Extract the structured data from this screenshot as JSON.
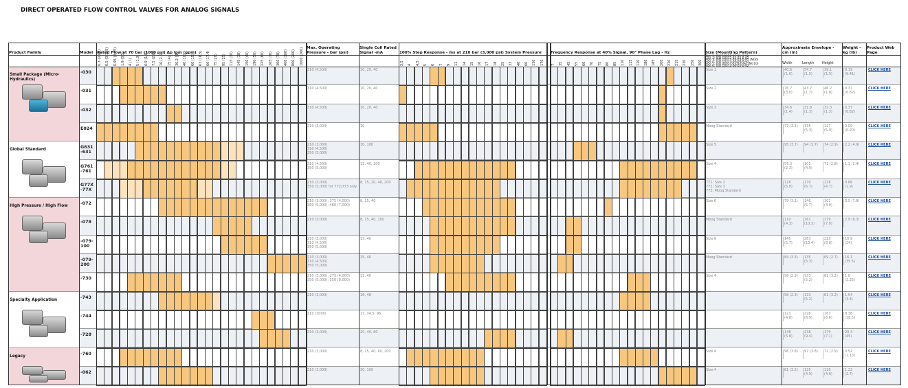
{
  "title": "DIRECT OPERATED FLOW CONTROL VALVES FOR ANALOG SIGNALS",
  "headers": {
    "family": "Product Family",
    "model": "Model",
    "flow": "Rated Flow at 70 bar (1000 psi) Δp lpm (gpm)",
    "pressure": "Max. Operating Pressure - bar (psi)",
    "signal": "Single Coil Rated Signal -mA",
    "step": "100% Step Response - ms at 210 bar (3,000 psi) System Pressure",
    "freq": "Frequency Response at 40% Signal, 90° Phase Lag - Hz",
    "size": "Size (Mounting Pattern)",
    "envelope": "Approximate Envelope - cm (in)",
    "width": "Width",
    "length": "Length",
    "height": "Height",
    "weight": "Weight - kg (lb)",
    "web": "Product Web Page"
  },
  "flow_columns": [
    "0.3 (0.08)",
    "0.5 (0.125)",
    "0.95 (0.25)",
    "1.9 (0.5)",
    "4 (1)",
    "5 (1.3)",
    "6.9 (1.8)",
    "7.5 (2.0)",
    "10 (2.5)",
    "15 (4)",
    "30.2 (8)",
    "40 (10)",
    "60 (15)",
    "63 (16.5)",
    "66 (17.4)",
    "75 (20)",
    "95 (25)",
    "115 (30)",
    "145 (38)",
    "150 (40)",
    "190 (50)",
    "225 (60)",
    "265 (70)",
    "300 (78)",
    "400 (100)",
    "800 (200)",
    "1000 (260)"
  ],
  "step_columns": [
    "2.5",
    "4",
    "4.5",
    "5",
    "6",
    "7",
    "9",
    "11",
    "14",
    "15",
    "16",
    "17",
    "18",
    "25",
    "33",
    "40",
    "60",
    "110",
    "170"
  ],
  "freq_columns": [
    "7",
    "35",
    "45",
    "55",
    "60",
    "70",
    "75",
    "80",
    "85",
    "110",
    "115",
    "120",
    "180",
    "185",
    "200",
    "210",
    "215",
    "230",
    "250",
    "300"
  ],
  "size_list": [
    "Size 1: ISO 10372-01-01-0-92",
    "Size 2: ISO 10372-03-03-0-92",
    "Size 3: ISO 10372-03-03-0-92 (NG6)",
    "Size 4: ISO 10372-04-04-0-92",
    "Size 5: ISO 4401-05-05-0-94 (NG10)",
    "Size 6: ISO 10372-06-05-0-92"
  ],
  "families": [
    {
      "name": "Small Package (Micro-Hydraulics)",
      "rows": [
        {
          "model": [
            "-030"
          ],
          "pressure": [
            "310 (4,500)"
          ],
          "signal": "10, 20, 40",
          "size": [
            "Size 1"
          ],
          "width": "40.6 (1.6)",
          "length": "54.7 (1.5)",
          "height": "39.1 (1.5)",
          "weight": "0.19 (0.41)",
          "link": "CLICK HERE",
          "flow": [
            [
              2,
              5
            ]
          ],
          "step": [
            [
              4,
              5
            ]
          ],
          "freq": [
            [
              15,
              15
            ]
          ]
        },
        {
          "model": [
            "-031"
          ],
          "pressure": [
            "310 (4,500)"
          ],
          "signal": "10, 20, 40",
          "size": [
            "Size 2"
          ],
          "width": "76.7 (3.0)",
          "length": "43.7 (1.7)",
          "height": "46.2 (1.8)",
          "weight": "0.37 (0.82)",
          "link": "CLICK HERE",
          "flow": [
            [
              3,
              8
            ]
          ],
          "step": [
            [
              0,
              0
            ]
          ],
          "freq": [
            [
              14,
              14
            ]
          ]
        },
        {
          "model": [
            "-032"
          ],
          "pressure": [
            "310 (4,500)"
          ],
          "signal": "10, 20, 40",
          "size": [
            "Size 3"
          ],
          "width": "34.6 (1.4)",
          "length": "31.8 (1.3)",
          "height": "32.0 (1.3)",
          "weight": "0.37 (0.82)",
          "link": "CLICK HERE",
          "flow": [
            [
              9,
              10
            ]
          ],
          "step": [],
          "freq": [
            [
              14,
              14
            ]
          ]
        },
        {
          "model": [
            "E024"
          ],
          "pressure": [
            "210 (3,000)"
          ],
          "signal": "10",
          "size": [
            "Moog Standard"
          ],
          "width": "77 (3.1)",
          "length": "135 (5.3)",
          "height": "127 (5.0)",
          "weight": "0.09 (0.20)",
          "link": "CLICK HERE",
          "flow": [
            [
              0,
              7
            ]
          ],
          "step": [
            [
              0,
              4
            ]
          ],
          "freq": [
            [
              14,
              18
            ]
          ]
        }
      ]
    },
    {
      "name": "Global Standard",
      "rows": [
        {
          "model": [
            "G631",
            "-631"
          ],
          "pressure": [
            "210 (3,000)",
            "310 (4,500)",
            "350 (5,000)"
          ],
          "signal": "30, 100",
          "size": [
            "Size 5"
          ],
          "width": "95 (3.7)",
          "length": "94 (3.7)",
          "height": "74 (2.9)",
          "weight": "2.2 (4.9)",
          "link": "CLICK HERE",
          "flow": [
            [
              5,
              15
            ]
          ],
          "flow_partial": [
            [
              16,
              18
            ]
          ],
          "step": [],
          "freq": [
            [
              3,
              5
            ]
          ]
        },
        {
          "model": [
            "G761",
            "-761"
          ],
          "pressure": [
            "310 (4,500)",
            "350 (5,000)"
          ],
          "signal": "15, 40, 200",
          "size": [
            "Size 4"
          ],
          "width": "59.3 (2.3)",
          "length": "101 (4.0)",
          "height": "71 (2.8)",
          "weight": "1.1 (2.4)",
          "link": "CLICK HERE",
          "flow": [
            [
              4,
              15
            ]
          ],
          "flow_partial": [
            [
              1,
              3
            ],
            [
              16,
              17
            ]
          ],
          "step": [
            [
              2,
              14
            ]
          ],
          "freq": [
            [
              9,
              18
            ]
          ]
        },
        {
          "model": [
            "G77X",
            "-77X"
          ],
          "pressure": [
            "210 (3,000)",
            "350 (5,000) for 772/773 only"
          ],
          "signal": "8, 15, 20, 40, 200",
          "size": [
            "771: Size 2",
            "772: Size 3",
            "773: Moog Standard"
          ],
          "width": "128 (5.0)",
          "length": "170 (6.7)",
          "height": "118 (4.7)",
          "weight": "0.86 (1.9)",
          "link": "CLICK HERE",
          "flow": [
            [
              6,
              12
            ]
          ],
          "flow_partial": [
            [
              3,
              5
            ],
            [
              13,
              14
            ]
          ],
          "step": [
            [
              1,
              12
            ]
          ],
          "freq": [
            [
              9,
              16
            ]
          ]
        }
      ]
    },
    {
      "name": "High Pressure / High Flow",
      "rows": [
        {
          "model": [
            "-072"
          ],
          "pressure": [
            "210 (3,000); 275 (4,000)",
            "350 (5,000); 480 (7,000)"
          ],
          "signal": "8, 15, 40",
          "size": [
            "Size 6"
          ],
          "width": "79 (3.1)",
          "length": "146 (5.7)",
          "height": "102 (4.0)",
          "weight": "3.5 (7.8)",
          "link": "CLICK HERE",
          "flow": [
            [
              8,
              21
            ]
          ],
          "step": [
            [
              3,
              14
            ]
          ],
          "freq": [
            [
              7,
              7
            ]
          ]
        },
        {
          "model": [
            "-078"
          ],
          "pressure": [
            "210 (3,000)"
          ],
          "signal": "8, 15, 40, 100",
          "size": [
            "Moog Standard"
          ],
          "width": "110 (4.3)",
          "length": "261 (10.3)",
          "height": "179 (7.0)",
          "weight": "2.9 (6.3)",
          "link": "CLICK HERE",
          "flow": [
            [
              15,
              19
            ]
          ],
          "step": [
            [
              4,
              14
            ]
          ],
          "freq": [
            [
              2,
              3
            ]
          ]
        },
        {
          "model": [
            "-079-",
            "100"
          ],
          "pressure": [
            "210 (3,000)",
            "310 (4,500)",
            "350 (5,000)"
          ],
          "signal": "15, 40",
          "size": [
            "Size 6"
          ],
          "width": "145 (5.7)",
          "length": "263 (10.4)",
          "height": "223 (8.8)",
          "weight": "10.9 (24)",
          "link": "CLICK HERE",
          "flow": [
            [
              16,
              21
            ]
          ],
          "step": [
            [
              4,
              12
            ]
          ],
          "freq": [
            [
              2,
              3
            ]
          ]
        },
        {
          "model": [
            "-079-",
            "200"
          ],
          "pressure": [
            "210 (3,000)",
            "310 (4,500)",
            "350 (5,000)"
          ],
          "signal": "15, 40",
          "size": [
            "Moog Standard"
          ],
          "width": "84 (3.3)",
          "length": "135 (5.3)",
          "height": "69 (2.7)",
          "weight": "16.1 (35.5)",
          "link": "CLICK HERE",
          "flow": [
            [
              22,
              26
            ]
          ],
          "step": [
            [
              4,
              10
            ]
          ],
          "freq": [
            [
              1,
              2
            ]
          ]
        },
        {
          "model": [
            "-730"
          ],
          "pressure": [
            "210 (3,000); 275 (4,000)",
            "350 (5,000); 550 (8,000)"
          ],
          "signal": "15, 40",
          "size": [
            "Size 4"
          ],
          "width": "58 (2.3)",
          "length": "133 (5.2)",
          "height": "81 (3.2)",
          "weight": "1.0 (2.25)",
          "link": "CLICK HERE",
          "flow": [
            [
              4,
              10
            ]
          ],
          "step": [
            [
              6,
              14
            ]
          ],
          "freq": [
            [
              10,
              12
            ]
          ]
        }
      ]
    },
    {
      "name": "Specialty Application",
      "rows": [
        {
          "model": [
            "-743"
          ],
          "pressure": [
            "210 (3,000)"
          ],
          "signal": "16, 48",
          "size": [],
          "width": "58 (2.3)",
          "length": "133 (5.2)",
          "height": "81 (3.2)",
          "weight": "1.54 (3.4)",
          "link": "CLICK HERE",
          "flow": [
            [
              8,
              14
            ]
          ],
          "flow_partial": [
            [
              15,
              15
            ]
          ],
          "step": [],
          "freq": [
            [
              9,
              12
            ]
          ]
        },
        {
          "model": [
            "-744"
          ],
          "pressure": [
            "210 (3000)"
          ],
          "signal": "17, 34.5, 96",
          "size": [],
          "width": "121 (4.8)",
          "length": "226 (8.9)",
          "height": "167 (6.6)",
          "weight": "8.38 (18.5)",
          "link": "CLICK HERE",
          "flow": [
            [
              20,
              22
            ]
          ],
          "step": [],
          "freq": []
        },
        {
          "model": [
            "-728"
          ],
          "pressure": [
            "210 (3,000)"
          ],
          "signal": "20, 40, 60",
          "size": [],
          "width": "148 (5.8)",
          "length": "238 (9.4)",
          "height": "179 (7.1)",
          "weight": "20.4 (45)",
          "link": "CLICK HERE",
          "flow": [
            [
              21,
              24
            ]
          ],
          "step": [
            [
              11,
              14
            ]
          ],
          "freq": [
            [
              1,
              2
            ]
          ]
        }
      ]
    },
    {
      "name": "Legacy",
      "rows": [
        {
          "model": [
            "-760"
          ],
          "pressure": [
            "210 (3,000)"
          ],
          "signal": "8, 15, 40, 60, 200",
          "size": [
            "Size 4"
          ],
          "width": "96 (3.8)",
          "length": "97 (3.8)",
          "height": "72 (2.9)",
          "weight": "0.52 (1.13)",
          "link": "CLICK HERE",
          "flow": [
            [
              3,
              10
            ]
          ],
          "step": [
            [
              1,
              10
            ]
          ],
          "freq": [
            [
              9,
              13
            ]
          ]
        },
        {
          "model": [
            "-062"
          ],
          "pressure": [
            "210 (3,000)"
          ],
          "signal": "30, 100",
          "size": [
            "Size 4"
          ],
          "width": "81 (3.2)",
          "length": "125 (4.9)",
          "height": "116 (4.6)",
          "weight": "1.22 (2.7)",
          "link": "CLICK HERE",
          "flow": [
            [
              8,
              14
            ]
          ],
          "step": [
            [
              4,
              10
            ]
          ],
          "freq": [
            [
              14,
              18
            ]
          ]
        }
      ]
    }
  ]
}
